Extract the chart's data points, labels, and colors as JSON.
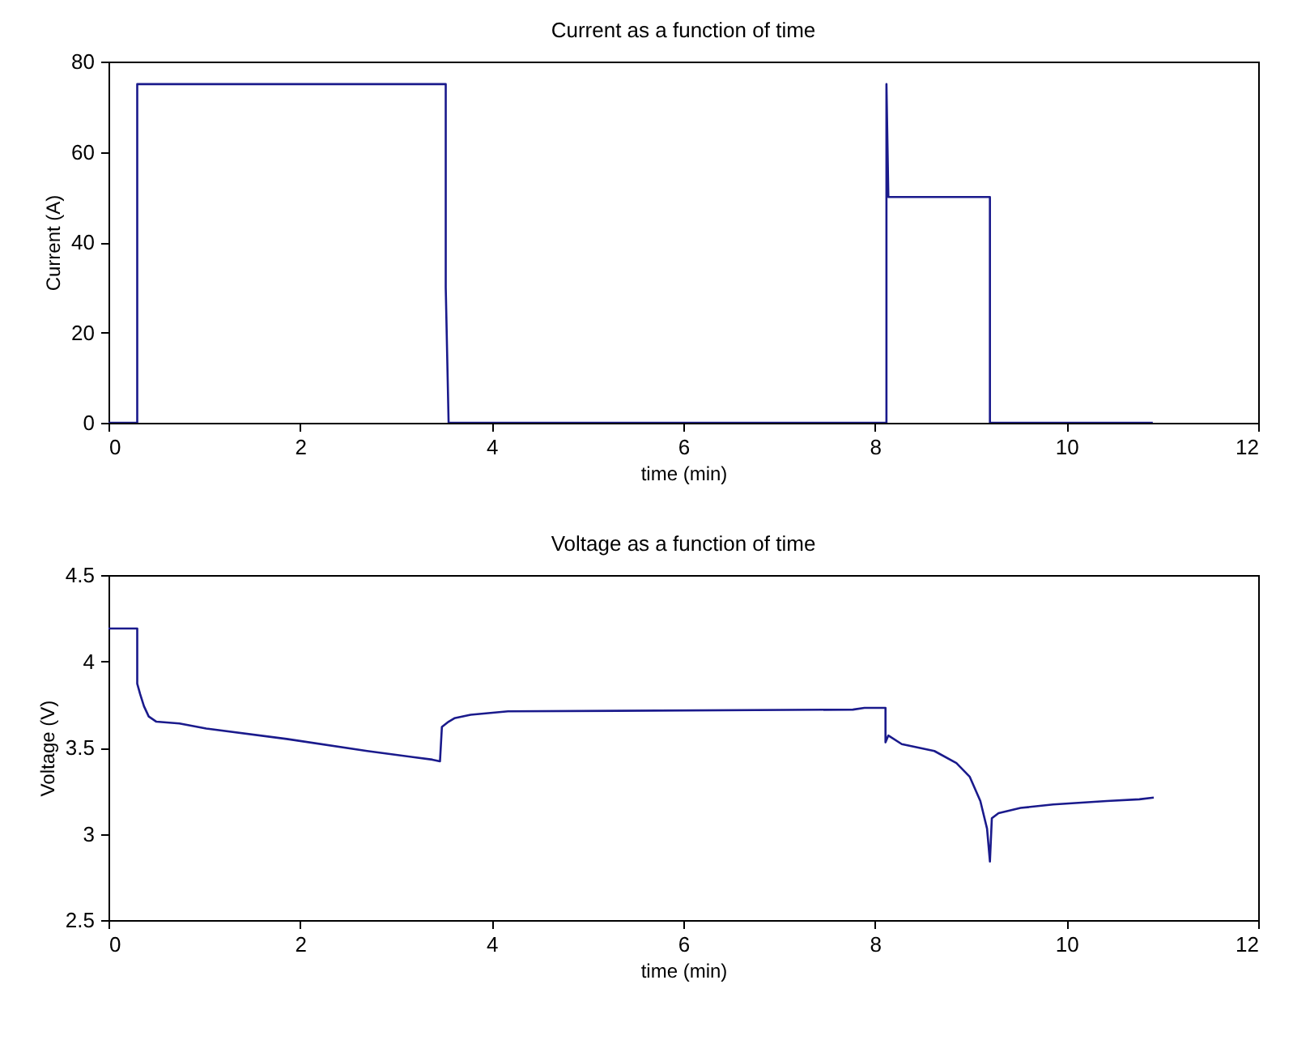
{
  "chart_data": [
    {
      "type": "line",
      "title": "Current as a function of time",
      "xlabel": "time (min)",
      "ylabel": "Current (A)",
      "xlim": [
        0,
        12
      ],
      "xticks": [
        0,
        2,
        4,
        6,
        8,
        10,
        12
      ],
      "ylim": [
        0,
        80
      ],
      "yticks": [
        0,
        20,
        40,
        60,
        80
      ],
      "grid": false,
      "series": [
        {
          "color": "#1a1a8c",
          "x": [
            0,
            0.3,
            0.3,
            3.52,
            3.52,
            3.55,
            8.12,
            8.12,
            8.14,
            9.2,
            9.2,
            10.9
          ],
          "values": [
            0,
            0,
            75,
            75,
            30,
            0,
            0,
            75,
            50,
            50,
            0,
            0
          ]
        }
      ]
    },
    {
      "type": "line",
      "title": "Voltage as a function of time",
      "xlabel": "time (min)",
      "ylabel": "Voltage (V)",
      "xlim": [
        0,
        12
      ],
      "xticks": [
        0,
        2,
        4,
        6,
        8,
        10,
        12
      ],
      "ylim": [
        2.5,
        4.5
      ],
      "yticks": [
        2.5,
        3,
        3.5,
        4,
        4.5
      ],
      "grid": false,
      "series": [
        {
          "color": "#1a1a8c",
          "x": [
            0,
            0.3,
            0.3,
            0.33,
            0.37,
            0.42,
            0.5,
            0.74,
            1.02,
            1.86,
            2.7,
            3.38,
            3.46,
            3.48,
            3.55,
            3.61,
            3.78,
            4.17,
            7.77,
            7.89,
            8.11,
            8.11,
            8.14,
            8.28,
            8.62,
            8.85,
            8.99,
            9.1,
            9.17,
            9.2,
            9.22,
            9.29,
            9.52,
            9.86,
            10.42,
            10.76,
            10.91
          ],
          "values": [
            4.19,
            4.19,
            3.87,
            3.81,
            3.74,
            3.68,
            3.65,
            3.64,
            3.61,
            3.55,
            3.48,
            3.43,
            3.42,
            3.62,
            3.65,
            3.67,
            3.69,
            3.71,
            3.72,
            3.73,
            3.73,
            3.53,
            3.57,
            3.52,
            3.48,
            3.41,
            3.33,
            3.19,
            3.03,
            2.84,
            3.09,
            3.12,
            3.15,
            3.17,
            3.19,
            3.2,
            3.21
          ]
        }
      ]
    }
  ]
}
